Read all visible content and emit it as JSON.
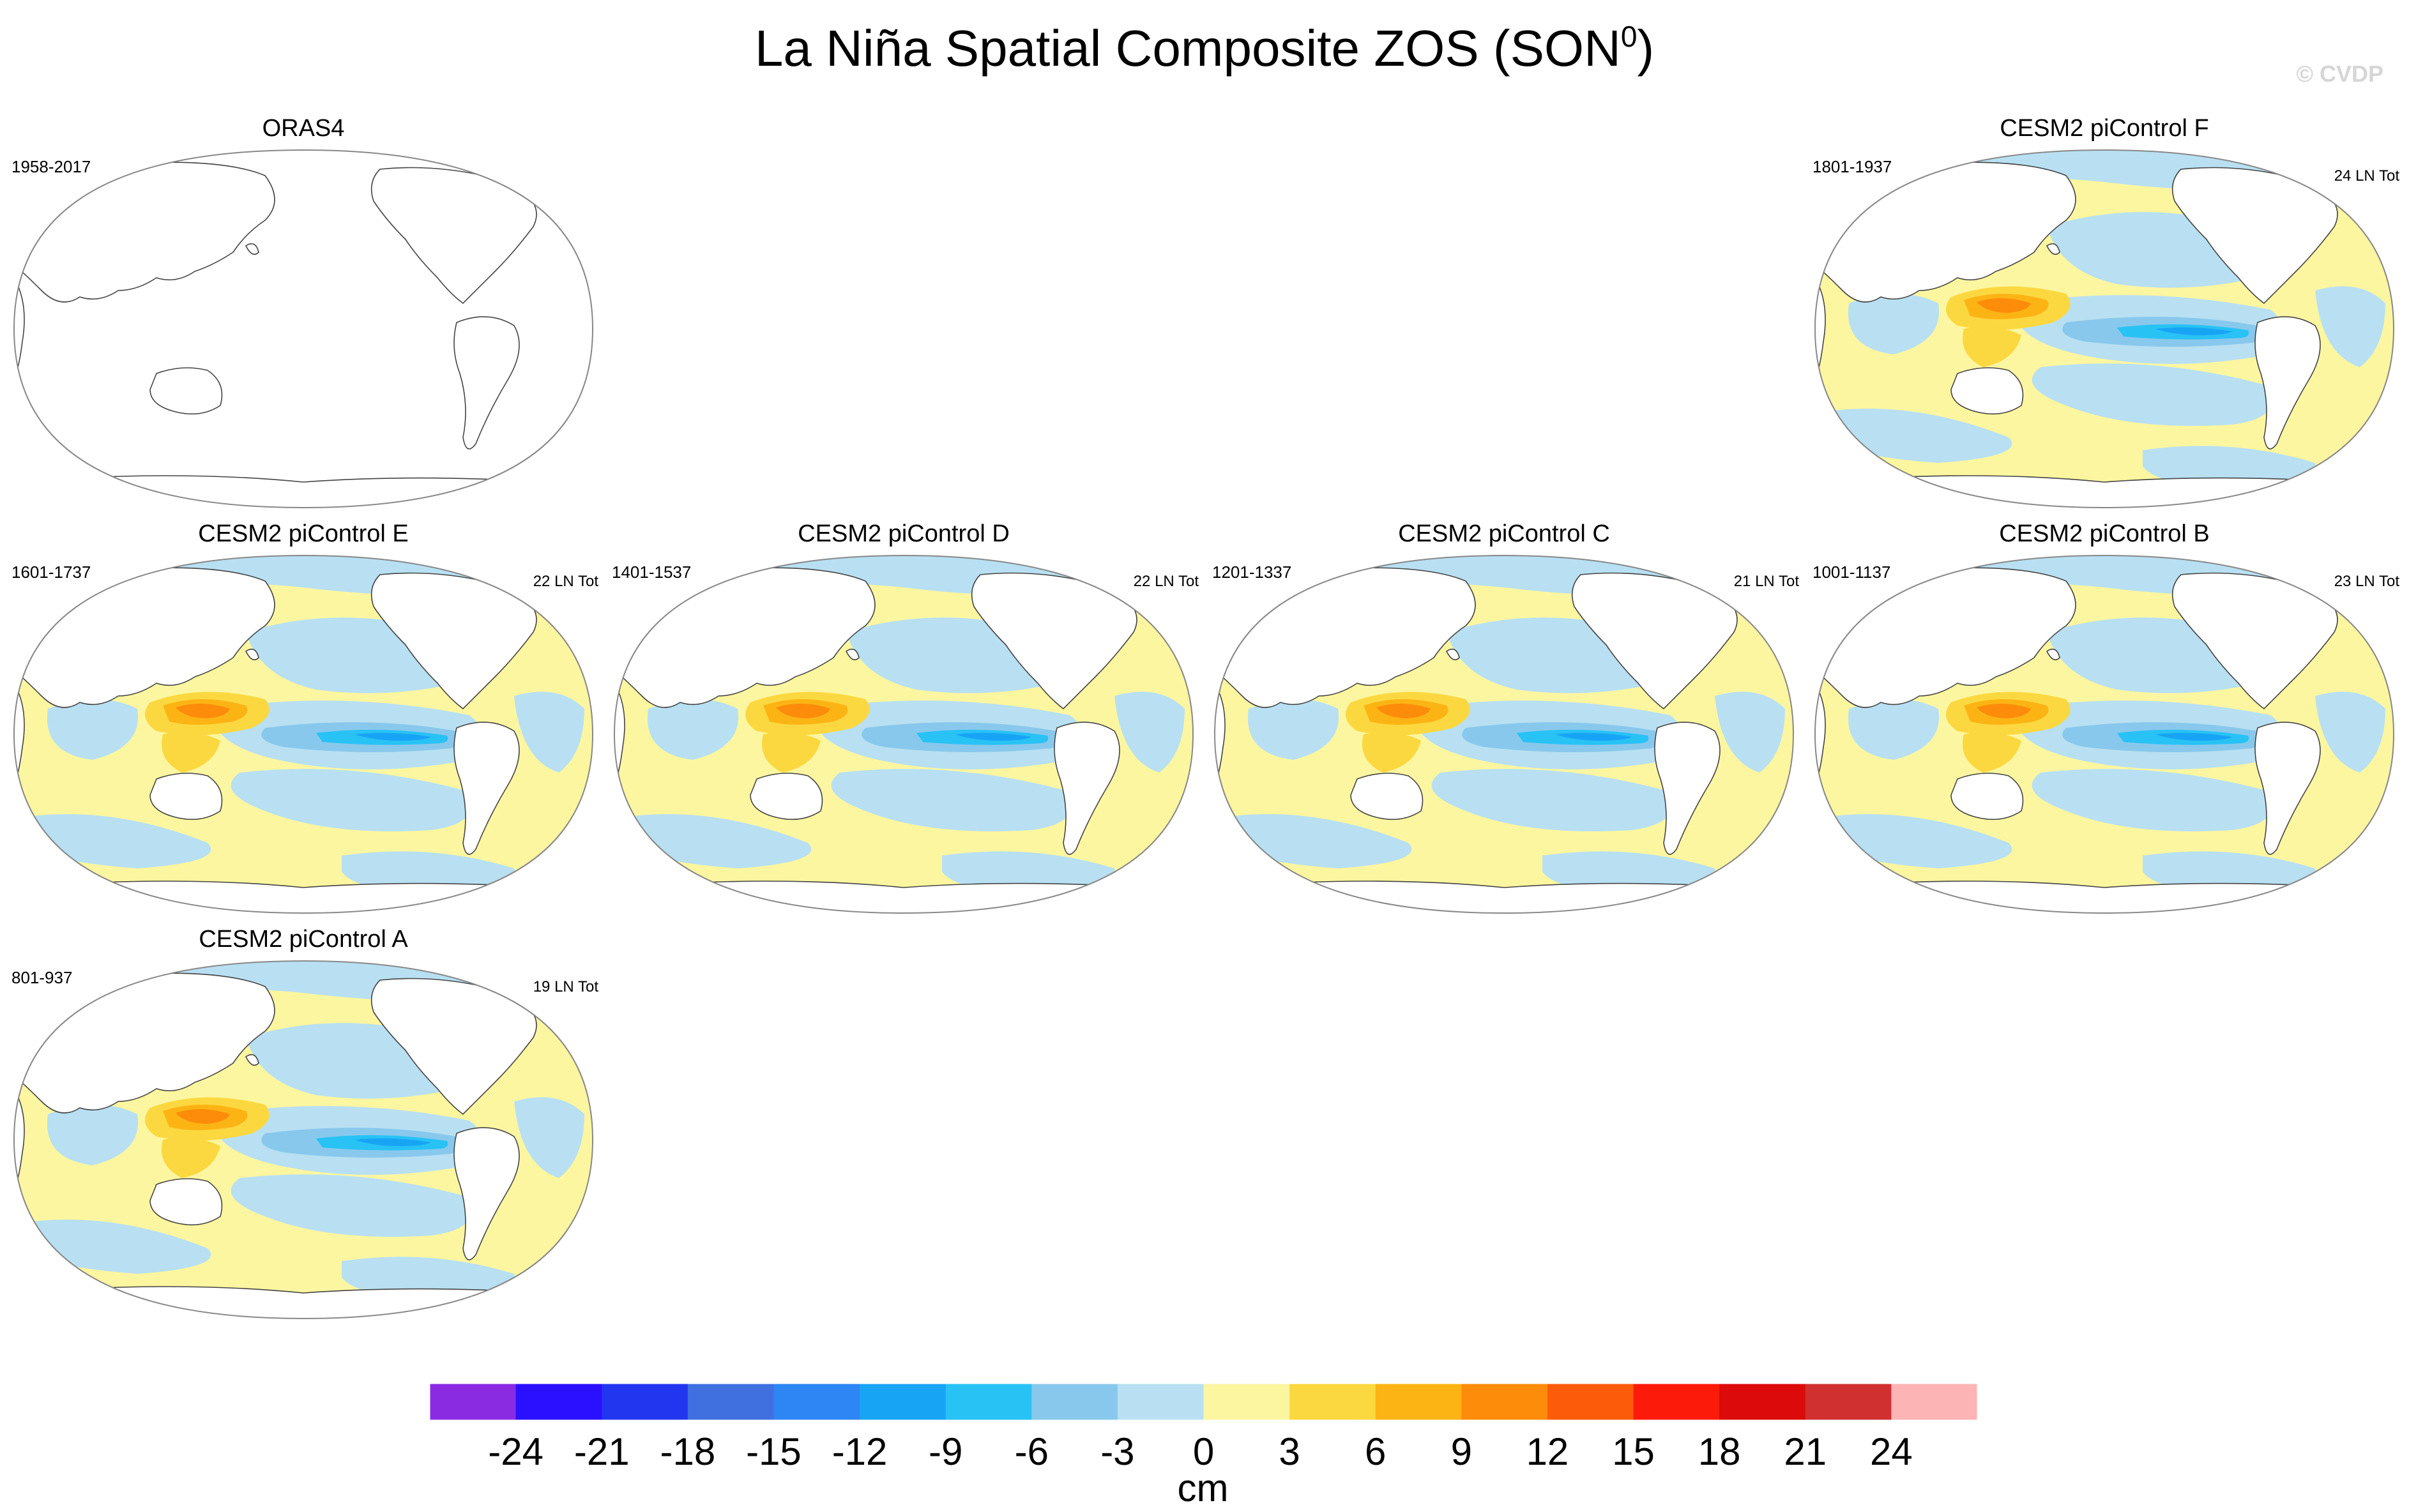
{
  "chart_data": {
    "type": "map-panels",
    "title": "La Niña Spatial Composite ZOS (SON",
    "title_superscript": "0",
    "title_close": ")",
    "watermark": "© CVDP",
    "panels": [
      {
        "id": "orsa4",
        "title": "ORAS4",
        "years": "1958-2017",
        "count": "",
        "filled": false,
        "col": 0,
        "row": 0
      },
      {
        "id": "F",
        "title": "CESM2 piControl F",
        "years": "1801-1937",
        "count": "24 LN Tot",
        "filled": true,
        "col": 3,
        "row": 0
      },
      {
        "id": "E",
        "title": "CESM2 piControl E",
        "years": "1601-1737",
        "count": "22 LN Tot",
        "filled": true,
        "col": 0,
        "row": 1
      },
      {
        "id": "D",
        "title": "CESM2 piControl D",
        "years": "1401-1537",
        "count": "22 LN Tot",
        "filled": true,
        "col": 1,
        "row": 1
      },
      {
        "id": "C",
        "title": "CESM2 piControl C",
        "years": "1201-1337",
        "count": "21 LN Tot",
        "filled": true,
        "col": 2,
        "row": 1
      },
      {
        "id": "B",
        "title": "CESM2 piControl B",
        "years": "1001-1137",
        "count": "23 LN Tot",
        "filled": true,
        "col": 3,
        "row": 1
      },
      {
        "id": "A",
        "title": "CESM2 piControl A",
        "years": "801-937",
        "count": "19 LN Tot",
        "filled": true,
        "col": 0,
        "row": 2
      }
    ],
    "colorbar": {
      "levels": [
        -24,
        -21,
        -18,
        -15,
        -12,
        -9,
        -6,
        -3,
        0,
        3,
        6,
        9,
        12,
        15,
        18,
        21,
        24
      ],
      "level_labels": [
        "-24",
        "-21",
        "-18",
        "-15",
        "-12",
        "-9",
        "-6",
        "-3",
        "0",
        "3",
        "6",
        "9",
        "12",
        "15",
        "18",
        "21",
        "24"
      ],
      "colors": [
        "#8a2be2",
        "#2a10ff",
        "#2236f0",
        "#4070e0",
        "#2e86f5",
        "#18a4f5",
        "#28c2f5",
        "#88c8ec",
        "#b8e0f2",
        "#fcf6a0",
        "#fcd840",
        "#fcb414",
        "#fc8c0a",
        "#fc5c0a",
        "#fc1a0a",
        "#dc0a0a",
        "#d03030",
        "#fcb4b4"
      ],
      "units": "cm"
    }
  }
}
